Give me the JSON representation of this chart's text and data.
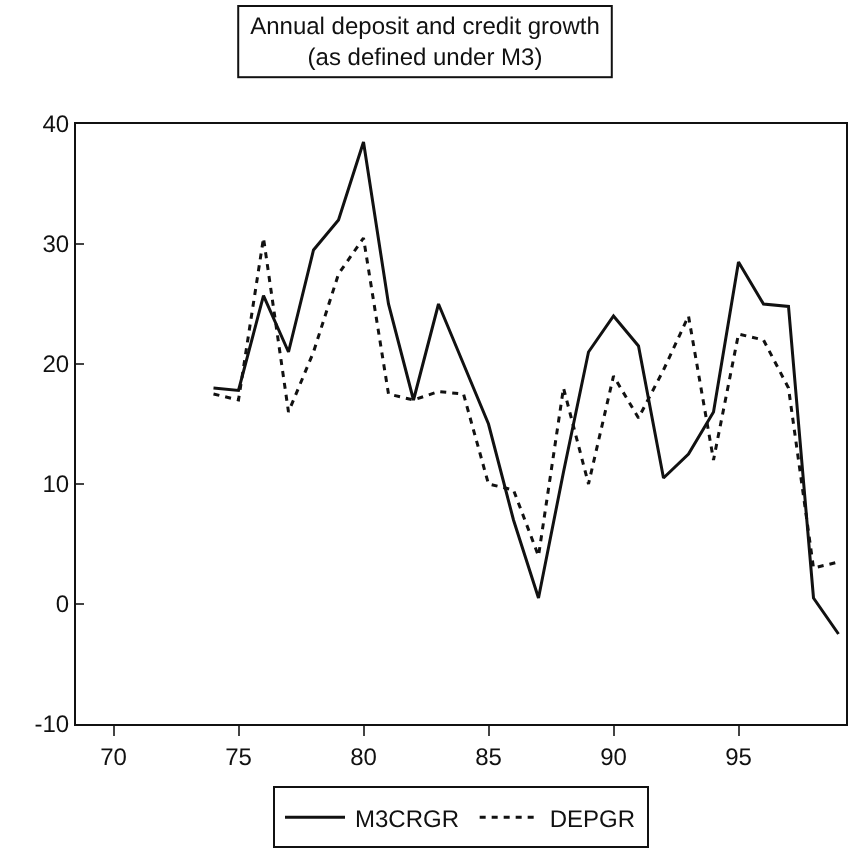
{
  "chart_data": {
    "type": "line",
    "title": "Annual deposit and credit growth\n(as defined under M3)",
    "x": [
      74,
      75,
      76,
      77,
      78,
      79,
      80,
      81,
      82,
      83,
      84,
      85,
      86,
      87,
      88,
      89,
      90,
      91,
      92,
      93,
      94,
      95,
      96,
      97,
      98,
      99
    ],
    "series": [
      {
        "name": "M3CRGR",
        "color": "#111111",
        "line_style": "solid",
        "values": [
          18,
          17.8,
          25.7,
          21,
          29.5,
          32,
          38.5,
          25,
          17,
          25,
          20,
          15,
          7,
          0.5,
          11,
          21,
          24,
          21.5,
          10.5,
          12.5,
          16,
          28.5,
          25,
          24.8,
          0.5,
          -2.5
        ]
      },
      {
        "name": "DEPGR",
        "color": "#111111",
        "line_style": "dotted",
        "values": [
          17.5,
          17,
          30.5,
          16,
          21,
          27.5,
          30.5,
          17.5,
          17,
          17.7,
          17.5,
          10,
          9.5,
          4,
          18,
          10,
          19,
          15.5,
          19.5,
          24,
          12,
          22.5,
          22,
          18,
          3,
          3.5
        ]
      }
    ],
    "xlim": [
      68.5,
      99.3
    ],
    "xticks": [
      70,
      75,
      80,
      85,
      90,
      95
    ],
    "ylim": [
      -10,
      40
    ],
    "yticks": [
      -10,
      0,
      10,
      20,
      30,
      40
    ],
    "grid": false,
    "legend": "bottom",
    "marker": "none"
  }
}
